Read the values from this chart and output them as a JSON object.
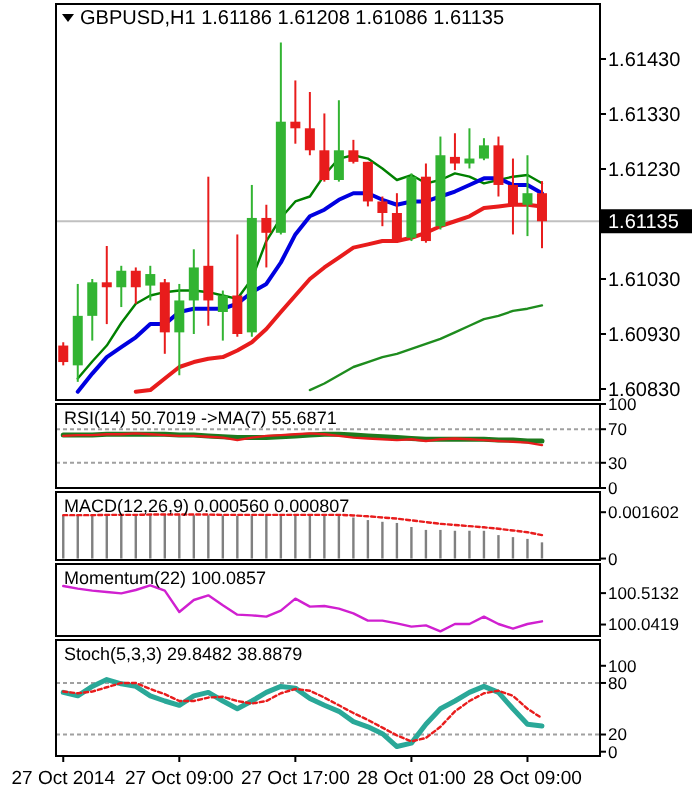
{
  "chart_data": [
    {
      "type": "candlestick",
      "title": "GBPUSD,H1 1.61186 1.61208 1.61086 1.61135",
      "tick_labels": "y",
      "x": [
        "2014-10-27T01:00",
        "2014-10-27T02:00",
        "2014-10-27T03:00",
        "2014-10-27T04:00",
        "2014-10-27T05:00",
        "2014-10-27T06:00",
        "2014-10-27T07:00",
        "2014-10-27T08:00",
        "2014-10-27T09:00",
        "2014-10-27T10:00",
        "2014-10-27T11:00",
        "2014-10-27T12:00",
        "2014-10-27T13:00",
        "2014-10-27T14:00",
        "2014-10-27T15:00",
        "2014-10-27T16:00",
        "2014-10-27T17:00",
        "2014-10-27T18:00",
        "2014-10-27T19:00",
        "2014-10-27T20:00",
        "2014-10-27T21:00",
        "2014-10-27T22:00",
        "2014-10-27T23:00",
        "2014-10-28T00:00",
        "2014-10-28T01:00",
        "2014-10-28T02:00",
        "2014-10-28T03:00",
        "2014-10-28T04:00",
        "2014-10-28T05:00",
        "2014-10-28T06:00",
        "2014-10-28T07:00",
        "2014-10-28T08:00",
        "2014-10-28T09:00",
        "2014-10-28T10:00"
      ],
      "xlim": [
        "2014-10-27T00:30",
        "2014-10-28T14:00"
      ],
      "ylim": [
        1.6081,
        1.6153
      ],
      "yticks": [
        {
          "value": 1.6083,
          "label": "1.60830"
        },
        {
          "value": 1.6093,
          "label": "1.60930"
        },
        {
          "value": 1.6103,
          "label": "1.61030"
        },
        {
          "value": 1.6123,
          "label": "1.61230"
        },
        {
          "value": 1.6133,
          "label": "1.61330"
        },
        {
          "value": 1.6143,
          "label": "1.61430"
        }
      ],
      "ohlc": [
        [
          1.60909,
          1.60915,
          1.60873,
          1.60879
        ],
        [
          1.60873,
          1.61021,
          1.60843,
          1.60963
        ],
        [
          1.60963,
          1.6103,
          1.60918,
          1.61024
        ],
        [
          1.61024,
          1.6109,
          1.60948,
          1.61015
        ],
        [
          1.61015,
          1.61054,
          1.60979,
          1.61045
        ],
        [
          1.61045,
          1.61051,
          1.60985,
          1.61015
        ],
        [
          1.61018,
          1.61054,
          1.60991,
          1.61039
        ],
        [
          1.61024,
          1.6103,
          1.60894,
          1.60933
        ],
        [
          1.60933,
          1.61021,
          1.60855,
          1.60991
        ],
        [
          1.60991,
          1.61084,
          1.6093,
          1.61051
        ],
        [
          1.61054,
          1.61216,
          1.60945,
          1.60991
        ],
        [
          1.6097,
          1.61009,
          1.60918,
          1.61
        ],
        [
          1.61,
          1.61111,
          1.60925,
          1.6093
        ],
        [
          1.60933,
          1.61201,
          1.60925,
          1.61141
        ],
        [
          1.61141,
          1.61165,
          1.61051,
          1.61114
        ],
        [
          1.61114,
          1.6146,
          1.61111,
          1.61316
        ],
        [
          1.61316,
          1.61391,
          1.61276,
          1.61304
        ],
        [
          1.61304,
          1.6137,
          1.61255,
          1.61264
        ],
        [
          1.61264,
          1.61331,
          1.61207,
          1.6121
        ],
        [
          1.6121,
          1.61355,
          1.61207,
          1.61264
        ],
        [
          1.61264,
          1.61283,
          1.6124,
          1.61243
        ],
        [
          1.61243,
          1.61243,
          1.61162,
          1.61171
        ],
        [
          1.61171,
          1.6118,
          1.61126,
          1.6115
        ],
        [
          1.6115,
          1.61186,
          1.61096,
          1.61099
        ],
        [
          1.61105,
          1.61222,
          1.61099,
          1.61216
        ],
        [
          1.61216,
          1.6124,
          1.61096,
          1.61099
        ],
        [
          1.61126,
          1.61289,
          1.6112,
          1.61255
        ],
        [
          1.61252,
          1.61295,
          1.61228,
          1.6124
        ],
        [
          1.6124,
          1.61304,
          1.61231,
          1.61249
        ],
        [
          1.61249,
          1.61286,
          1.61246,
          1.61273
        ],
        [
          1.61273,
          1.61289,
          1.6118,
          1.61201
        ],
        [
          1.61201,
          1.61249,
          1.61111,
          1.61165
        ],
        [
          1.61165,
          1.61255,
          1.61108,
          1.61186
        ],
        [
          1.61186,
          1.61208,
          1.61086,
          1.61135
        ]
      ],
      "colors": [
        "#e81c1c",
        "#32b432",
        "#32b432",
        "#e81c1c",
        "#32b432",
        "#e81c1c",
        "#32b432",
        "#e81c1c",
        "#32b432",
        "#32b432",
        "#e81c1c",
        "#32b432",
        "#e81c1c",
        "#32b432",
        "#e81c1c",
        "#32b432",
        "#e81c1c",
        "#e81c1c",
        "#e81c1c",
        "#32b432",
        "#e81c1c",
        "#e81c1c",
        "#e81c1c",
        "#e81c1c",
        "#32b432",
        "#e81c1c",
        "#32b432",
        "#e81c1c",
        "#32b432",
        "#32b432",
        "#e81c1c",
        "#e81c1c",
        "#32b432",
        "#e81c1c"
      ],
      "series": [
        {
          "type": "line",
          "color": "#008000",
          "values": [
            null,
            1.60849,
            1.6088,
            1.60909,
            1.6095,
            1.60985,
            1.61,
            1.61006,
            1.61009,
            1.61009,
            1.61006,
            1.61,
            1.60994,
            1.6103,
            1.61099,
            1.61141,
            1.61171,
            1.6118,
            1.61219,
            1.61249,
            1.61255,
            1.61249,
            1.61231,
            1.6121,
            1.61219,
            1.61204,
            1.6121,
            1.61222,
            1.61216,
            1.61204,
            1.6121,
            1.61216,
            1.61219,
            1.61204
          ]
        },
        {
          "type": "line",
          "color": "#0000e0",
          "values": [
            null,
            1.60825,
            1.60858,
            1.60888,
            1.60906,
            1.60924,
            1.60948,
            1.60948,
            1.6097,
            1.60976,
            1.60976,
            1.60976,
            1.60985,
            1.61006,
            1.61021,
            1.6106,
            1.61111,
            1.61144,
            1.61156,
            1.61174,
            1.61186,
            1.61186,
            1.61174,
            1.61165,
            1.61171,
            1.61171,
            1.6118,
            1.61189,
            1.61201,
            1.61213,
            1.61213,
            1.61201,
            1.61201,
            1.61186
          ]
        },
        {
          "type": "line",
          "color": "#e81c1c",
          "values": [
            null,
            null,
            null,
            null,
            null,
            1.60825,
            1.60828,
            1.60849,
            1.6087,
            1.60879,
            1.60885,
            1.60888,
            1.609,
            1.60915,
            1.60939,
            1.6097,
            1.61,
            1.6103,
            1.61051,
            1.61069,
            1.61087,
            1.61093,
            1.61099,
            1.61099,
            1.61105,
            1.61114,
            1.61126,
            1.61135,
            1.61144,
            1.61159,
            1.61162,
            1.61165,
            1.61165,
            1.61162
          ]
        },
        {
          "type": "line",
          "color": "#1e8c1e",
          "values": [
            null,
            null,
            null,
            null,
            null,
            null,
            null,
            null,
            null,
            null,
            null,
            null,
            null,
            null,
            null,
            null,
            null,
            1.60828,
            1.6084,
            1.60855,
            1.6087,
            1.60879,
            1.60888,
            1.60894,
            1.60903,
            1.60912,
            1.60921,
            1.60933,
            1.60945,
            1.60957,
            1.60963,
            1.60972,
            1.60976,
            1.60982
          ]
        }
      ],
      "ref_lines": [
        {
          "axis": "y",
          "value": 1.61135,
          "label": "1.61135",
          "color": "#c0c0c0"
        }
      ]
    },
    {
      "type": "line",
      "title": "RSI(14) 50.7019  ->MA(7) 55.6871",
      "tick_labels": "y",
      "x": [
        "2014-10-27T01:00",
        "2014-10-27T02:00",
        "2014-10-27T03:00",
        "2014-10-27T04:00",
        "2014-10-27T05:00",
        "2014-10-27T06:00",
        "2014-10-27T07:00",
        "2014-10-27T08:00",
        "2014-10-27T09:00",
        "2014-10-27T10:00",
        "2014-10-27T11:00",
        "2014-10-27T12:00",
        "2014-10-27T13:00",
        "2014-10-27T14:00",
        "2014-10-27T15:00",
        "2014-10-27T16:00",
        "2014-10-27T17:00",
        "2014-10-27T18:00",
        "2014-10-27T19:00",
        "2014-10-27T20:00",
        "2014-10-27T21:00",
        "2014-10-27T22:00",
        "2014-10-27T23:00",
        "2014-10-28T00:00",
        "2014-10-28T01:00",
        "2014-10-28T02:00",
        "2014-10-28T03:00",
        "2014-10-28T04:00",
        "2014-10-28T05:00",
        "2014-10-28T06:00",
        "2014-10-28T07:00",
        "2014-10-28T08:00",
        "2014-10-28T09:00",
        "2014-10-28T10:00"
      ],
      "xlim": [
        "2014-10-27T00:30",
        "2014-10-28T14:00"
      ],
      "ylim": [
        0,
        100
      ],
      "yticks": [
        100,
        70,
        30,
        0
      ],
      "series": [
        {
          "color": "#1e7a1e",
          "values": [
            63,
            63,
            63,
            64,
            64,
            64,
            64,
            64,
            63,
            63,
            62,
            61,
            60,
            60,
            60,
            61,
            62,
            63,
            64,
            64,
            63,
            62,
            61,
            60,
            59,
            58,
            58,
            58,
            58,
            58,
            57,
            57,
            56,
            56
          ]
        },
        {
          "color": "#e81c1c",
          "values": [
            62,
            63,
            63,
            64,
            64,
            65,
            64,
            63,
            62,
            62,
            61,
            60,
            57,
            60,
            62,
            63,
            64,
            65,
            64,
            62,
            60,
            59,
            58,
            57,
            58,
            56,
            58,
            59,
            58,
            57,
            56,
            55,
            54,
            51
          ]
        }
      ],
      "ref_lines": [
        {
          "axis": "y",
          "value": 70,
          "color": "#a0a0a0",
          "line_style": "dashed"
        },
        {
          "axis": "y",
          "value": 30,
          "color": "#a0a0a0",
          "line_style": "dashed"
        }
      ]
    },
    {
      "type": "bar",
      "title": "MACD(12,26,9) 0.000560 0.000807",
      "tick_labels": "y",
      "x": [
        "2014-10-27T01:00",
        "2014-10-27T02:00",
        "2014-10-27T03:00",
        "2014-10-27T04:00",
        "2014-10-27T05:00",
        "2014-10-27T06:00",
        "2014-10-27T07:00",
        "2014-10-27T08:00",
        "2014-10-27T09:00",
        "2014-10-27T10:00",
        "2014-10-27T11:00",
        "2014-10-27T12:00",
        "2014-10-27T13:00",
        "2014-10-27T14:00",
        "2014-10-27T15:00",
        "2014-10-27T16:00",
        "2014-10-27T17:00",
        "2014-10-27T18:00",
        "2014-10-27T19:00",
        "2014-10-27T20:00",
        "2014-10-27T21:00",
        "2014-10-27T22:00",
        "2014-10-27T23:00",
        "2014-10-28T00:00",
        "2014-10-28T01:00",
        "2014-10-28T02:00",
        "2014-10-28T03:00",
        "2014-10-28T04:00",
        "2014-10-28T05:00",
        "2014-10-28T06:00",
        "2014-10-28T07:00",
        "2014-10-28T08:00",
        "2014-10-28T09:00",
        "2014-10-28T10:00"
      ],
      "xlim": [
        "2014-10-27T00:30",
        "2014-10-28T14:00"
      ],
      "ylim": [
        -5e-05,
        0.0023
      ],
      "yticks": [
        0.001602,
        0
      ],
      "series": [
        {
          "type": "bar",
          "color": "#808080",
          "values": [
            0.0015,
            0.00151,
            0.00152,
            0.00153,
            0.00153,
            0.00152,
            0.00152,
            0.00151,
            0.0015,
            0.0015,
            0.0015,
            0.00149,
            0.00148,
            0.00149,
            0.0015,
            0.00151,
            0.00151,
            0.00151,
            0.0015,
            0.00149,
            0.00142,
            0.00133,
            0.00127,
            0.00123,
            0.00109,
            0.00099,
            0.00099,
            0.00096,
            0.00096,
            0.00096,
            0.00081,
            0.00074,
            0.00068,
            0.00056
          ]
        },
        {
          "type": "line",
          "color": "#e81c1c",
          "line_style": "dashed",
          "values": [
            0.0015,
            0.0015,
            0.0015,
            0.00151,
            0.00151,
            0.00151,
            0.00152,
            0.00152,
            0.00152,
            0.00152,
            0.00152,
            0.00151,
            0.00151,
            0.00151,
            0.00151,
            0.00151,
            0.00151,
            0.00151,
            0.00151,
            0.00151,
            0.00149,
            0.00146,
            0.00142,
            0.00138,
            0.00132,
            0.00126,
            0.0012,
            0.00116,
            0.00112,
            0.00108,
            0.00103,
            0.00097,
            0.00091,
            0.00081
          ]
        }
      ]
    },
    {
      "type": "line",
      "title": "Momentum(22) 100.0857",
      "tick_labels": "y",
      "x": [
        "2014-10-27T01:00",
        "2014-10-27T02:00",
        "2014-10-27T03:00",
        "2014-10-27T04:00",
        "2014-10-27T05:00",
        "2014-10-27T06:00",
        "2014-10-27T07:00",
        "2014-10-27T08:00",
        "2014-10-27T09:00",
        "2014-10-27T10:00",
        "2014-10-27T11:00",
        "2014-10-27T12:00",
        "2014-10-27T13:00",
        "2014-10-27T14:00",
        "2014-10-27T15:00",
        "2014-10-27T16:00",
        "2014-10-27T17:00",
        "2014-10-27T18:00",
        "2014-10-27T19:00",
        "2014-10-27T20:00",
        "2014-10-27T21:00",
        "2014-10-27T22:00",
        "2014-10-27T23:00",
        "2014-10-28T00:00",
        "2014-10-28T01:00",
        "2014-10-28T02:00",
        "2014-10-28T03:00",
        "2014-10-28T04:00",
        "2014-10-28T05:00",
        "2014-10-28T06:00",
        "2014-10-28T07:00",
        "2014-10-28T08:00",
        "2014-10-28T09:00",
        "2014-10-28T10:00"
      ],
      "xlim": [
        "2014-10-27T00:30",
        "2014-10-28T14:00"
      ],
      "ylim": [
        99.87,
        100.95
      ],
      "yticks": [
        100.5132,
        100.0419
      ],
      "series": [
        {
          "color": "#d020d0",
          "values": [
            100.62,
            100.58,
            100.55,
            100.53,
            100.51,
            100.56,
            100.63,
            100.55,
            100.23,
            100.41,
            100.48,
            100.33,
            100.19,
            100.18,
            100.16,
            100.25,
            100.43,
            100.31,
            100.32,
            100.28,
            100.21,
            100.1,
            100.1,
            100.06,
            100.01,
            100.03,
            99.94,
            100.05,
            100.05,
            100.16,
            100.05,
            99.98,
            100.05,
            100.09
          ]
        }
      ]
    },
    {
      "type": "line",
      "title": "Stoch(5,3,3) 29.8482 38.8879",
      "x": [
        "2014-10-27T01:00",
        "2014-10-27T02:00",
        "2014-10-27T03:00",
        "2014-10-27T04:00",
        "2014-10-27T05:00",
        "2014-10-27T06:00",
        "2014-10-27T07:00",
        "2014-10-27T08:00",
        "2014-10-27T09:00",
        "2014-10-27T10:00",
        "2014-10-27T11:00",
        "2014-10-27T12:00",
        "2014-10-27T13:00",
        "2014-10-27T14:00",
        "2014-10-27T15:00",
        "2014-10-27T16:00",
        "2014-10-27T17:00",
        "2014-10-27T18:00",
        "2014-10-27T19:00",
        "2014-10-27T20:00",
        "2014-10-27T21:00",
        "2014-10-27T22:00",
        "2014-10-27T23:00",
        "2014-10-28T00:00",
        "2014-10-28T01:00",
        "2014-10-28T02:00",
        "2014-10-28T03:00",
        "2014-10-28T04:00",
        "2014-10-28T05:00",
        "2014-10-28T06:00",
        "2014-10-28T07:00",
        "2014-10-28T08:00",
        "2014-10-28T09:00",
        "2014-10-28T10:00"
      ],
      "xlim": [
        "2014-10-27T00:30",
        "2014-10-28T14:00"
      ],
      "ylim": [
        -5,
        130
      ],
      "yticks": [
        100,
        80,
        20,
        0
      ],
      "xticks": [
        {
          "value": "2014-10-27T01:00",
          "label": "27 Oct 2014"
        },
        {
          "value": "2014-10-27T09:00",
          "label": "27 Oct 09:00"
        },
        {
          "value": "2014-10-27T17:00",
          "label": "27 Oct 17:00"
        },
        {
          "value": "2014-10-28T01:00",
          "label": "28 Oct 01:00"
        },
        {
          "value": "2014-10-28T09:00",
          "label": "28 Oct 09:00"
        }
      ],
      "series": [
        {
          "color": "#2aa898",
          "values": [
            69,
            65,
            76,
            84,
            79,
            76,
            65,
            59,
            54,
            65,
            69,
            59,
            50,
            59,
            69,
            76,
            74,
            62,
            54,
            47,
            35,
            29,
            21,
            6,
            10,
            32,
            50,
            59,
            69,
            76,
            69,
            50,
            32,
            30
          ]
        },
        {
          "color": "#e81c1c",
          "line_style": "dashed",
          "values": [
            70,
            68,
            70,
            75,
            80,
            80,
            73,
            67,
            59,
            59,
            63,
            64,
            59,
            56,
            59,
            68,
            73,
            71,
            63,
            54,
            45,
            37,
            28,
            19,
            12,
            16,
            29,
            47,
            59,
            68,
            71,
            65,
            50,
            39
          ]
        }
      ],
      "ref_lines": [
        {
          "axis": "y",
          "value": 80,
          "color": "#a0a0a0",
          "line_style": "dashed"
        },
        {
          "axis": "y",
          "value": 20,
          "color": "#a0a0a0",
          "line_style": "dashed"
        }
      ]
    }
  ]
}
